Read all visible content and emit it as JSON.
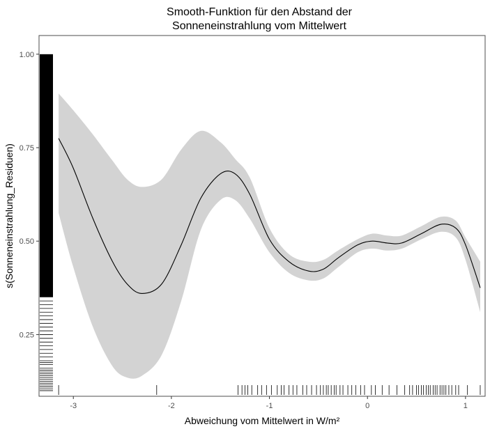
{
  "chart_data": {
    "type": "line",
    "title_lines": [
      "Smooth-Funktion für den Abstand der",
      "Sonneneinstrahlung vom Mittelwert"
    ],
    "xlabel": "Abweichung vom Mittelwert in W/m²",
    "ylabel": "s(Sonneneinstrahlung_Residuen)",
    "xlim": [
      -3.35,
      1.2
    ],
    "ylim": [
      0.085,
      1.05
    ],
    "x_ticks": [
      -3,
      -2,
      -1,
      0,
      1
    ],
    "x_tick_labels": [
      "-3",
      "-2",
      "-1",
      "0",
      "1"
    ],
    "y_ticks": [
      0.25,
      0.5,
      0.75,
      1.0
    ],
    "y_tick_labels": [
      "0.25",
      "0.50",
      "0.75",
      "1.00"
    ],
    "grid": false,
    "colors": {
      "ribbon": "#d3d3d3",
      "line": "#000000",
      "rug": "#000000",
      "border": "#4d4d4d"
    },
    "series": [
      {
        "x": [
          -3.15,
          -3.0,
          -2.8,
          -2.6,
          -2.45,
          -2.3,
          -2.1,
          -1.9,
          -1.7,
          -1.5,
          -1.35,
          -1.2,
          -1.0,
          -0.8,
          -0.6,
          -0.45,
          -0.3,
          -0.1,
          0.05,
          0.2,
          0.35,
          0.55,
          0.75,
          0.9,
          1.0,
          1.15
        ],
        "y": [
          0.775,
          0.695,
          0.56,
          0.445,
          0.385,
          0.36,
          0.385,
          0.49,
          0.615,
          0.68,
          0.68,
          0.625,
          0.505,
          0.445,
          0.42,
          0.425,
          0.455,
          0.49,
          0.5,
          0.495,
          0.495,
          0.52,
          0.545,
          0.535,
          0.49,
          0.375
        ],
        "lower": [
          0.575,
          0.43,
          0.27,
          0.165,
          0.135,
          0.14,
          0.195,
          0.34,
          0.53,
          0.61,
          0.61,
          0.56,
          0.47,
          0.415,
          0.395,
          0.4,
          0.43,
          0.47,
          0.48,
          0.475,
          0.48,
          0.505,
          0.525,
          0.51,
          0.45,
          0.31
        ],
        "upper": [
          0.895,
          0.85,
          0.785,
          0.715,
          0.665,
          0.645,
          0.665,
          0.745,
          0.795,
          0.765,
          0.72,
          0.67,
          0.535,
          0.465,
          0.445,
          0.45,
          0.475,
          0.505,
          0.52,
          0.515,
          0.515,
          0.54,
          0.565,
          0.555,
          0.51,
          0.445
        ]
      }
    ],
    "rug_x": [
      -3.15,
      -2.15,
      -1.32,
      -1.28,
      -1.25,
      -1.22,
      -1.18,
      -1.12,
      -1.08,
      -1.03,
      -0.98,
      -0.92,
      -0.88,
      -0.85,
      -0.8,
      -0.76,
      -0.72,
      -0.66,
      -0.62,
      -0.57,
      -0.52,
      -0.48,
      -0.45,
      -0.42,
      -0.4,
      -0.37,
      -0.34,
      -0.32,
      -0.28,
      -0.25,
      -0.2,
      -0.16,
      -0.12,
      -0.07,
      -0.03,
      0.04,
      0.08,
      0.15,
      0.22,
      0.3,
      0.38,
      0.43,
      0.46,
      0.5,
      0.52,
      0.55,
      0.57,
      0.6,
      0.62,
      0.64,
      0.67,
      0.69,
      0.71,
      0.74,
      0.76,
      0.78,
      0.8,
      0.83,
      0.86,
      0.9,
      0.93,
      1.02,
      1.15
    ],
    "rug_y_dense_range": [
      0.35,
      1.0
    ],
    "rug_y": [
      0.1,
      0.105,
      0.11,
      0.115,
      0.12,
      0.125,
      0.13,
      0.135,
      0.14,
      0.145,
      0.15,
      0.155,
      0.16,
      0.17,
      0.175,
      0.18,
      0.19,
      0.2,
      0.21,
      0.22,
      0.23,
      0.24,
      0.25,
      0.26,
      0.27,
      0.28,
      0.29,
      0.3,
      0.31,
      0.32,
      0.33,
      0.34
    ]
  }
}
